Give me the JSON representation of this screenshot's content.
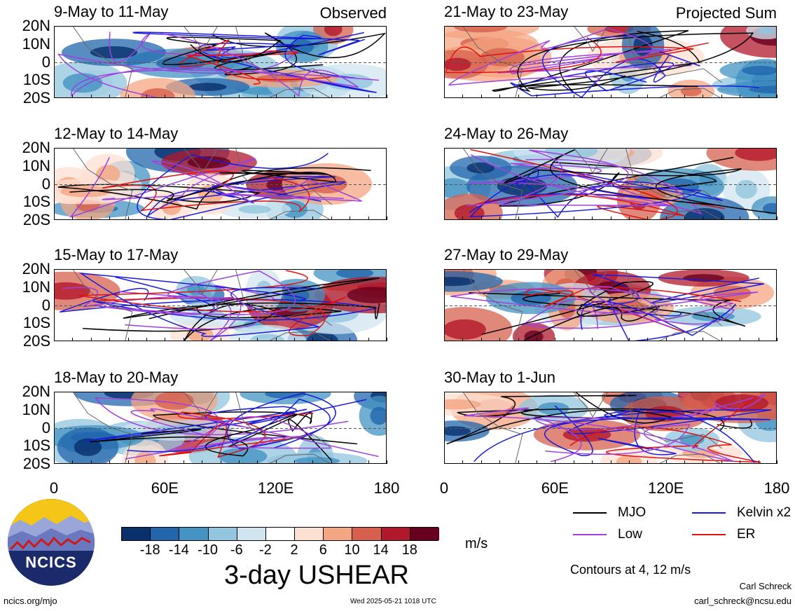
{
  "panels": [
    {
      "title": "9-May to 11-May",
      "tag": "Observed"
    },
    {
      "title": "12-May to 14-May",
      "tag": ""
    },
    {
      "title": "15-May to 17-May",
      "tag": ""
    },
    {
      "title": "18-May to 20-May",
      "tag": ""
    },
    {
      "title": "21-May to 23-May",
      "tag": "Projected Sum"
    },
    {
      "title": "24-May to 26-May",
      "tag": ""
    },
    {
      "title": "27-May to 29-May",
      "tag": ""
    },
    {
      "title": "30-May to 1-Jun",
      "tag": ""
    }
  ],
  "lat_labels": [
    "20N",
    "10N",
    "0",
    "10S",
    "20S"
  ],
  "lon_labels": [
    "0",
    "60E",
    "120E",
    "180"
  ],
  "colorbar": {
    "colors": [
      "#08306b",
      "#2166ac",
      "#4393c3",
      "#92c5de",
      "#d1e5f0",
      "#ffffff",
      "#fde0d2",
      "#f4a582",
      "#d6604d",
      "#b2182b",
      "#67001f"
    ],
    "labels": [
      "-18",
      "-14",
      "-10",
      "-6",
      "-2",
      "2",
      "6",
      "10",
      "14",
      "18"
    ],
    "units": "m/s"
  },
  "title_main": "3-day USHEAR",
  "legend": {
    "items": [
      {
        "label": "MJO",
        "color": "#000000"
      },
      {
        "label": "Kelvin x2",
        "color": "#1a1adc"
      },
      {
        "label": "Low",
        "color": "#a040e0"
      },
      {
        "label": "ER",
        "color": "#e01010"
      }
    ],
    "contours_note": "Contours at 4, 12 m/s"
  },
  "logo": {
    "text": "NCICS"
  },
  "footer": {
    "url": "ncics.org/mjo",
    "timestamp": "Wed 2025-05-21 1018 UTC",
    "author": "Carl Schreck",
    "email": "carl_schreck@ncsu.edu"
  }
}
